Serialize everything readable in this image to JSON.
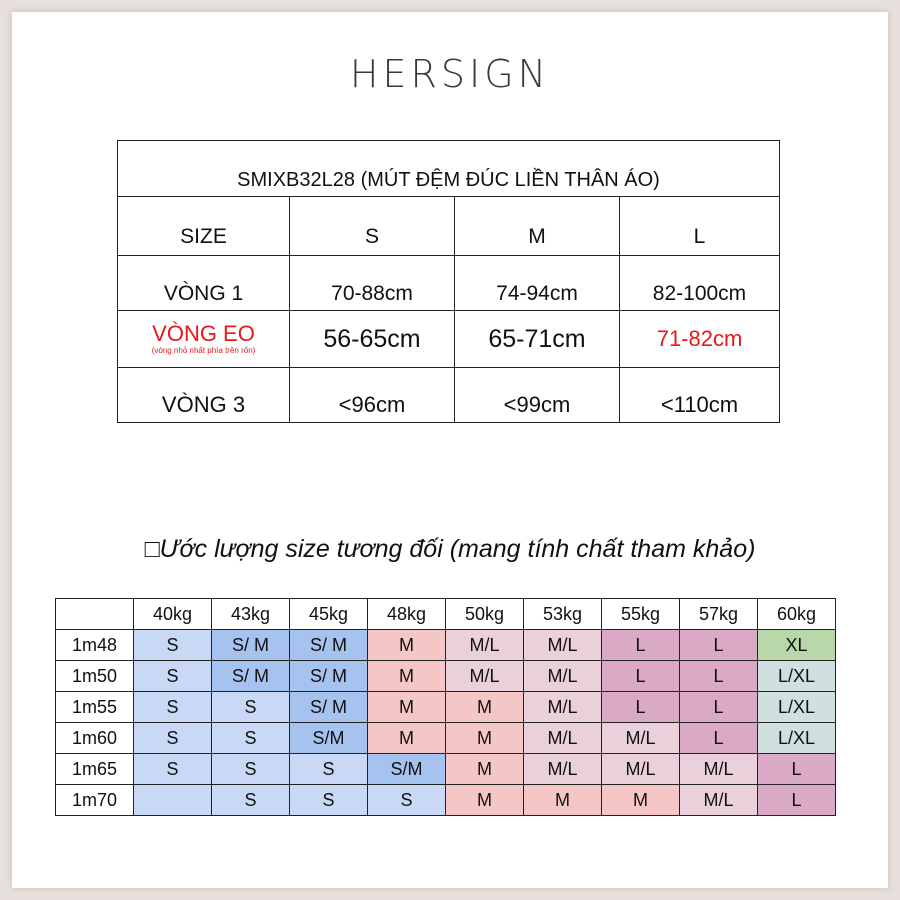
{
  "brand": "HERSIGN",
  "size_table": {
    "title": "SMIXB32L28 (MÚT ĐỆM ĐÚC LIỀN THÂN ÁO)",
    "header": [
      "SIZE",
      "S",
      "M",
      "L"
    ],
    "rows": [
      {
        "label": "VÒNG 1",
        "values": [
          "70-88cm",
          "74-94cm",
          "82-100cm"
        ]
      },
      {
        "label": "VÒNG EO",
        "sublabel": "(vòng nhỏ nhất phía trên rốn)",
        "values": [
          "56-65cm",
          "65-71cm",
          "71-82cm"
        ]
      },
      {
        "label": "VÒNG 3",
        "values": [
          "<96cm",
          "<99cm",
          "<110cm"
        ]
      }
    ]
  },
  "note": "□Ước lượng size tương đối (mang tính chất tham khảo)",
  "estimate_grid": {
    "weights": [
      "",
      "40kg",
      "43kg",
      "45kg",
      "48kg",
      "50kg",
      "53kg",
      "55kg",
      "57kg",
      "60kg"
    ],
    "rows": [
      {
        "height": "1m48",
        "cells": [
          "S",
          "S/ M",
          "S/ M",
          "M",
          "M/L",
          "M/L",
          "L",
          "L",
          "XL"
        ]
      },
      {
        "height": "1m50",
        "cells": [
          "S",
          "S/ M",
          "S/ M",
          "M",
          "M/L",
          "M/L",
          "L",
          "L",
          "L/XL"
        ]
      },
      {
        "height": "1m55",
        "cells": [
          "S",
          "S",
          "S/ M",
          "M",
          "M",
          "M/L",
          "L",
          "L",
          "L/XL"
        ]
      },
      {
        "height": "1m60",
        "cells": [
          "S",
          "S",
          "S/M",
          "M",
          "M",
          "M/L",
          "M/L",
          "L",
          "L/XL"
        ]
      },
      {
        "height": "1m65",
        "cells": [
          "S",
          "S",
          "S",
          "S/M",
          "M",
          "M/L",
          "M/L",
          "M/L",
          "L"
        ]
      },
      {
        "height": "1m70",
        "cells": [
          "",
          "S",
          "S",
          "S",
          "M",
          "M",
          "M",
          "M/L",
          "L"
        ]
      }
    ]
  }
}
